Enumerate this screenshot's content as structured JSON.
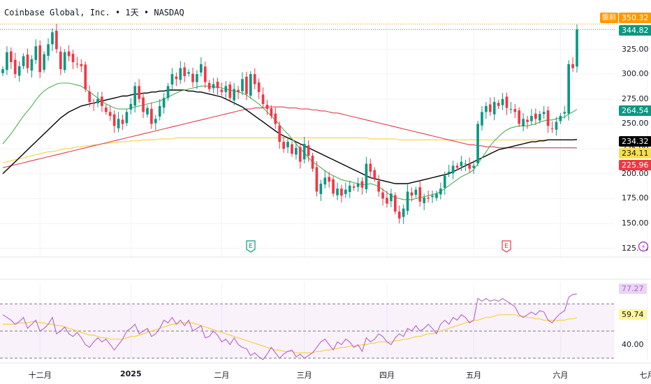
{
  "symbol": {
    "name": "Coinbase Global, Inc.",
    "interval": "1天",
    "exchange": "NASDAQ",
    "separator": "•"
  },
  "colors": {
    "up": "#089981",
    "down": "#f23645",
    "ma_fast": "#4caf50",
    "ma_mid": "#000000",
    "ma_slow": "#e03c4a",
    "ma_long": "#f5d142",
    "rsi": "#b65fcf",
    "rsi_ma": "#f5d142",
    "premarket": "#ff9800"
  },
  "price_axis": {
    "ticks": [
      "325.00",
      "300.00",
      "275.00",
      "250.00",
      "225.00",
      "200.00",
      "175.00",
      "150.00",
      "125.00"
    ],
    "tick_values": [
      325,
      300,
      275,
      250,
      225,
      200,
      175,
      150,
      125
    ],
    "range": [
      115,
      352
    ]
  },
  "price_tags": {
    "premarket_label": "盤前",
    "premarket": {
      "text": "350.32",
      "value": 350.32,
      "bg": "#ff9800",
      "fg": "#ffffff"
    },
    "last": {
      "text": "344.82",
      "value": 344.82,
      "bg": "#089981",
      "fg": "#ffffff"
    },
    "ma_fast": {
      "text": "264.54",
      "value": 264.54,
      "bg": "#089981",
      "fg": "#ffffff"
    },
    "ma_mid": {
      "text": "234.32",
      "value": 234.32,
      "bg": "#000000",
      "fg": "#ffffff"
    },
    "ma_long": {
      "text": "234.11",
      "value": 234.11,
      "bg": "#f5e14a",
      "fg": "#131722"
    },
    "ma_slow": {
      "text": "225.96",
      "value": 225.96,
      "bg": "#f23645",
      "fg": "#ffffff"
    }
  },
  "rsi_axis": {
    "ticks": [
      "40.00"
    ],
    "tick_values": [
      40
    ],
    "range": [
      29,
      83
    ],
    "bands": [
      70,
      50,
      30
    ]
  },
  "rsi_tags": {
    "rsi": {
      "text": "77.27",
      "value": 77.27,
      "bg": "#e7d7f3",
      "fg": "#b65fcf"
    },
    "rsi_ma": {
      "text": "59.74",
      "value": 59.74,
      "bg": "#fff59d",
      "fg": "#131722"
    }
  },
  "x_axis": {
    "labels": [
      {
        "text": "十二月",
        "index": 9,
        "bold": false
      },
      {
        "text": "2025",
        "index": 31,
        "bold": true
      },
      {
        "text": "二月",
        "index": 53,
        "bold": false
      },
      {
        "text": "三月",
        "index": 73,
        "bold": false
      },
      {
        "text": "四月",
        "index": 93,
        "bold": false
      },
      {
        "text": "五月",
        "index": 114,
        "bold": false
      },
      {
        "text": "六月",
        "index": 135,
        "bold": false
      },
      {
        "text": "七月",
        "index": 156,
        "bold": false
      }
    ]
  },
  "events": [
    {
      "type": "earnings",
      "symbol": "E",
      "index": 60,
      "color": "#089981"
    },
    {
      "type": "earnings",
      "symbol": "E",
      "index": 122,
      "color": "#f23645"
    },
    {
      "type": "split",
      "symbol": "⚡",
      "index": 155,
      "color": "#9c27b0"
    }
  ],
  "chart_data": {
    "type": "candlestick",
    "candles": {
      "close": [
        305,
        322,
        312,
        300,
        308,
        318,
        306,
        315,
        328,
        302,
        320,
        330,
        342,
        325,
        305,
        322,
        318,
        312,
        310,
        308,
        285,
        272,
        270,
        275,
        268,
        262,
        258,
        248,
        255,
        250,
        262,
        270,
        288,
        275,
        262,
        266,
        250,
        255,
        268,
        276,
        288,
        300,
        295,
        306,
        298,
        302,
        292,
        300,
        310,
        292,
        285,
        290,
        286,
        282,
        288,
        276,
        285,
        282,
        295,
        280,
        300,
        290,
        282,
        270,
        265,
        258,
        250,
        232,
        225,
        232,
        220,
        226,
        212,
        230,
        218,
        205,
        182,
        190,
        196,
        192,
        180,
        185,
        178,
        184,
        188,
        186,
        190,
        186,
        210,
        202,
        195,
        182,
        175,
        170,
        180,
        162,
        155,
        165,
        182,
        178,
        184,
        172,
        176,
        175,
        178,
        180,
        185,
        198,
        202,
        208,
        206,
        212,
        210,
        205,
        208,
        250,
        262,
        268,
        262,
        272,
        268,
        275,
        266,
        265,
        262,
        250,
        255,
        252,
        258,
        255,
        260,
        262,
        248,
        245,
        252,
        258,
        262,
        310,
        306,
        344.82
      ],
      "ma_fast": [
        230,
        235,
        240,
        246,
        252,
        258,
        263,
        268,
        274,
        279,
        283,
        286,
        288,
        290,
        291,
        291,
        291,
        290,
        289,
        288,
        285,
        282,
        279,
        276,
        273,
        270,
        268,
        266,
        265,
        265,
        265,
        266,
        267,
        268,
        269,
        270,
        271,
        272,
        273,
        275,
        277,
        279,
        281,
        283,
        284,
        285,
        286,
        287,
        288,
        288,
        288,
        287,
        287,
        286,
        285,
        284,
        283,
        282,
        281,
        279,
        276,
        273,
        270,
        266,
        262,
        258,
        254,
        249,
        244,
        240,
        235,
        230,
        225,
        221,
        216,
        212,
        209,
        206,
        203,
        200,
        198,
        196,
        194,
        193,
        192,
        191,
        190,
        189,
        189,
        190,
        189,
        187,
        184,
        181,
        178,
        176,
        175,
        174,
        174,
        174,
        175,
        176,
        177,
        178,
        179,
        180,
        182,
        185,
        188,
        191,
        194,
        197,
        199,
        201,
        204,
        210,
        216,
        222,
        228,
        233,
        237,
        241,
        244,
        246,
        247,
        248,
        248,
        248,
        249,
        250,
        252,
        253,
        254,
        254,
        255,
        256,
        257,
        260,
        262,
        264.54
      ],
      "ma_mid": [
        200,
        204,
        208,
        212,
        216,
        220,
        224,
        228,
        232,
        236,
        240,
        244,
        248,
        252,
        256,
        259,
        262,
        264,
        266,
        268,
        269,
        270,
        271,
        272,
        273,
        274,
        275,
        276,
        277,
        278,
        278,
        279,
        280,
        280,
        281,
        281,
        282,
        282,
        283,
        283,
        284,
        284,
        284,
        284,
        284,
        283,
        283,
        282,
        282,
        281,
        280,
        279,
        278,
        277,
        275,
        273,
        271,
        269,
        267,
        264,
        261,
        258,
        255,
        252,
        249,
        246,
        243,
        240,
        238,
        236,
        234,
        232,
        230,
        228,
        226,
        224,
        222,
        220,
        218,
        216,
        214,
        212,
        210,
        208,
        206,
        204,
        202,
        200,
        198,
        196,
        195,
        194,
        193,
        192,
        191,
        190,
        190,
        190,
        190,
        191,
        192,
        193,
        194,
        195,
        196,
        197,
        198,
        199,
        200,
        202,
        204,
        206,
        208,
        210,
        212,
        214,
        216,
        218,
        220,
        222,
        224,
        225,
        226,
        227,
        228,
        229,
        230,
        231,
        232,
        232,
        233,
        233,
        234,
        234,
        234,
        234,
        234,
        234,
        234,
        234.32
      ],
      "ma_slow": [
        206,
        207,
        208,
        209,
        210,
        211,
        212,
        213,
        214,
        215,
        216,
        217,
        218,
        219,
        220,
        221,
        222,
        223,
        224,
        225,
        226,
        227,
        228,
        229,
        230,
        231,
        232,
        233,
        234,
        235,
        236,
        237,
        238,
        239,
        240,
        241,
        242,
        243,
        244,
        245,
        246,
        247,
        248,
        249,
        250,
        251,
        252,
        253,
        254,
        255,
        256,
        257,
        258,
        259,
        260,
        261,
        262,
        263,
        264,
        265,
        265,
        266,
        266,
        266,
        267,
        267,
        267,
        267,
        267,
        266,
        266,
        266,
        265,
        265,
        265,
        264,
        264,
        263,
        263,
        262,
        261,
        261,
        260,
        259,
        258,
        257,
        256,
        255,
        254,
        253,
        252,
        251,
        250,
        249,
        248,
        247,
        246,
        245,
        244,
        243,
        242,
        241,
        240,
        239,
        238,
        237,
        236,
        235,
        234,
        233,
        232,
        231,
        230,
        229,
        229,
        228,
        228,
        227,
        227,
        227,
        226,
        226,
        226,
        226,
        226,
        226,
        226,
        226,
        226,
        226,
        226,
        226,
        226,
        226,
        226,
        226,
        226,
        226,
        226,
        225.96
      ],
      "ma_long": [
        211,
        212,
        213,
        214,
        215,
        216,
        217,
        218,
        219,
        220,
        221,
        222,
        222,
        223,
        224,
        225,
        225,
        226,
        227,
        227,
        228,
        228,
        229,
        229,
        230,
        230,
        231,
        231,
        232,
        232,
        232,
        233,
        233,
        233,
        234,
        234,
        234,
        234,
        235,
        235,
        235,
        235,
        236,
        236,
        236,
        236,
        236,
        236,
        236,
        236,
        236,
        236,
        236,
        236,
        236,
        236,
        236,
        236,
        236,
        236,
        236,
        236,
        236,
        236,
        236,
        236,
        236,
        236,
        236,
        236,
        236,
        236,
        236,
        236,
        236,
        236,
        236,
        236,
        236,
        236,
        236,
        236,
        236,
        236,
        236,
        236,
        236,
        236,
        236,
        235,
        235,
        235,
        235,
        235,
        235,
        235,
        234,
        234,
        234,
        234,
        234,
        234,
        234,
        234,
        234,
        234,
        234,
        234,
        234,
        234,
        234,
        234,
        234,
        234,
        234,
        234,
        234,
        234,
        234,
        234,
        234,
        234,
        234,
        234,
        234,
        234,
        234,
        234,
        234,
        234,
        234,
        234,
        234,
        234,
        234,
        234,
        234,
        234,
        234,
        234.11
      ]
    },
    "rsi": [
      62,
      60,
      58,
      55,
      57,
      60,
      52,
      55,
      58,
      50,
      52,
      55,
      60,
      48,
      50,
      53,
      48,
      46,
      49,
      45,
      40,
      38,
      42,
      45,
      42,
      44,
      40,
      36,
      40,
      44,
      50,
      52,
      55,
      48,
      50,
      52,
      46,
      48,
      52,
      58,
      56,
      60,
      55,
      58,
      54,
      58,
      50,
      52,
      54,
      45,
      46,
      50,
      47,
      42,
      44,
      40,
      45,
      40,
      38,
      37,
      32,
      34,
      31,
      29,
      33,
      38,
      34,
      30,
      33,
      35,
      36,
      31,
      33,
      30,
      32,
      34,
      38,
      42,
      44,
      40,
      36,
      42,
      40,
      44,
      42,
      38,
      40,
      35,
      45,
      42,
      44,
      48,
      46,
      42,
      40,
      45,
      48,
      46,
      52,
      50,
      54,
      50,
      52,
      55,
      52,
      48,
      55,
      58,
      55,
      60,
      58,
      62,
      60,
      56,
      58,
      74,
      72,
      74,
      72,
      73,
      72,
      74,
      72,
      70,
      68,
      62,
      60,
      62,
      64,
      62,
      65,
      64,
      58,
      56,
      60,
      63,
      65,
      75,
      77,
      77.27
    ],
    "rsi_ma": [
      55,
      55,
      55,
      55,
      56,
      56,
      56,
      57,
      57,
      56,
      56,
      55,
      55,
      54,
      54,
      53,
      52,
      51,
      50,
      49,
      48,
      47,
      47,
      46,
      45,
      45,
      44,
      44,
      44,
      44,
      45,
      46,
      46,
      47,
      48,
      49,
      50,
      51,
      52,
      53,
      54,
      55,
      55,
      56,
      56,
      56,
      56,
      55,
      54,
      53,
      52,
      51,
      50,
      49,
      48,
      47,
      46,
      45,
      44,
      43,
      42,
      41,
      40,
      39,
      38,
      37,
      36,
      36,
      35,
      35,
      35,
      34,
      34,
      34,
      34,
      34,
      35,
      35,
      36,
      36,
      37,
      37,
      38,
      38,
      39,
      39,
      39,
      40,
      40,
      41,
      41,
      42,
      42,
      42,
      42,
      43,
      43,
      44,
      44,
      45,
      46,
      46,
      47,
      48,
      48,
      49,
      50,
      51,
      52,
      53,
      54,
      55,
      56,
      57,
      58,
      58,
      59,
      60,
      60,
      61,
      62,
      62,
      62,
      62,
      62,
      61,
      61,
      60,
      60,
      59,
      59,
      58,
      58,
      58,
      58,
      58,
      58,
      59,
      59,
      59.74
    ]
  }
}
